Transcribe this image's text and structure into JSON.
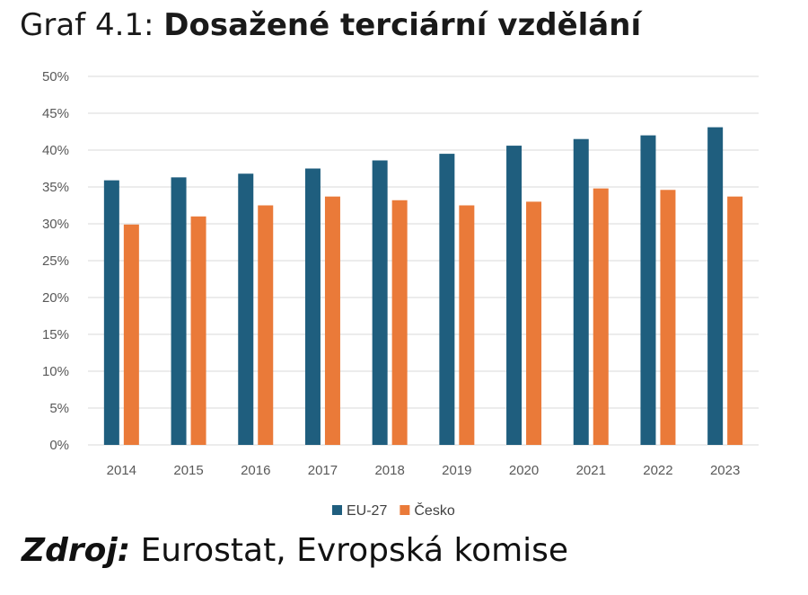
{
  "header": {
    "prefix": "Graf 4.1:",
    "title": "Dosažené terciární vzdělání"
  },
  "chart_data": {
    "type": "bar",
    "title": "Dosažené terciární vzdělání",
    "categories": [
      "2014",
      "2015",
      "2016",
      "2017",
      "2018",
      "2019",
      "2020",
      "2021",
      "2022",
      "2023"
    ],
    "series": [
      {
        "name": "EU-27",
        "color": "#1f5e7e",
        "values": [
          35.9,
          36.3,
          36.8,
          37.5,
          38.6,
          39.5,
          40.6,
          41.5,
          42.0,
          43.1
        ]
      },
      {
        "name": "Česko",
        "color": "#ea7a39",
        "values": [
          29.9,
          31.0,
          32.5,
          33.7,
          33.2,
          32.5,
          33.0,
          34.8,
          34.6,
          33.7
        ]
      }
    ],
    "ylim": [
      0,
      50
    ],
    "yticks": [
      "0%",
      "5%",
      "10%",
      "15%",
      "20%",
      "25%",
      "30%",
      "35%",
      "40%",
      "45%",
      "50%"
    ],
    "xlabel": "",
    "ylabel": "",
    "grid": true,
    "legend_position": "bottom"
  },
  "source": {
    "label": "Zdroj:",
    "text": "Eurostat, Evropská komise"
  }
}
